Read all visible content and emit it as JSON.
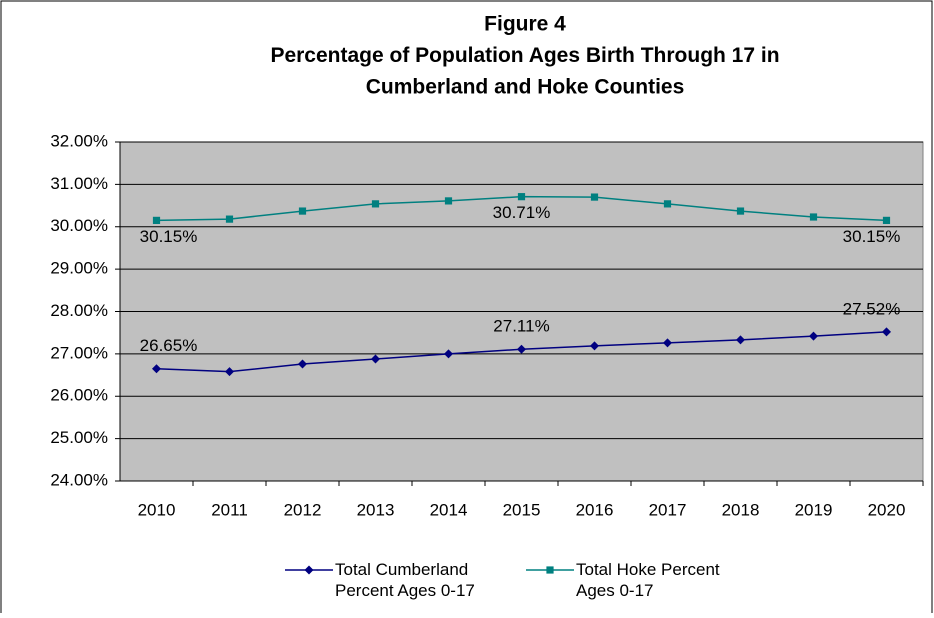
{
  "chart_data": {
    "type": "line",
    "title": [
      "Figure 4",
      "Percentage of Population Ages Birth Through 17 in",
      "Cumberland and Hoke Counties"
    ],
    "categories": [
      "2010",
      "2011",
      "2012",
      "2013",
      "2014",
      "2015",
      "2016",
      "2017",
      "2018",
      "2019",
      "2020"
    ],
    "series": [
      {
        "name": "Total Cumberland Percent Ages 0-17",
        "color": "#000080",
        "marker": "diamond",
        "values": [
          26.65,
          26.58,
          26.76,
          26.88,
          27.0,
          27.11,
          27.19,
          27.26,
          27.33,
          27.42,
          27.52
        ],
        "value_labels": [
          "26.65%",
          null,
          null,
          null,
          null,
          "27.11%",
          null,
          null,
          null,
          null,
          "27.52%"
        ]
      },
      {
        "name": "Total Hoke Percent Ages 0-17",
        "color": "#008080",
        "marker": "square",
        "values": [
          30.15,
          30.18,
          30.37,
          30.54,
          30.61,
          30.71,
          30.7,
          30.54,
          30.37,
          30.23,
          30.15
        ],
        "value_labels": [
          "30.15%",
          null,
          null,
          null,
          null,
          "30.71%",
          null,
          null,
          null,
          null,
          "30.15%"
        ]
      }
    ],
    "ylim": [
      24,
      32
    ],
    "yticks": [
      {
        "value": 24,
        "label": "24.00%"
      },
      {
        "value": 25,
        "label": "25.00%"
      },
      {
        "value": 26,
        "label": "26.00%"
      },
      {
        "value": 27,
        "label": "27.00%"
      },
      {
        "value": 28,
        "label": "28.00%"
      },
      {
        "value": 29,
        "label": "29.00%"
      },
      {
        "value": 30,
        "label": "30.00%"
      },
      {
        "value": 31,
        "label": "31.00%"
      },
      {
        "value": 32,
        "label": "32.00%"
      }
    ],
    "grid": true,
    "plot_background": "#c0c0c0",
    "legend": "bottom"
  }
}
